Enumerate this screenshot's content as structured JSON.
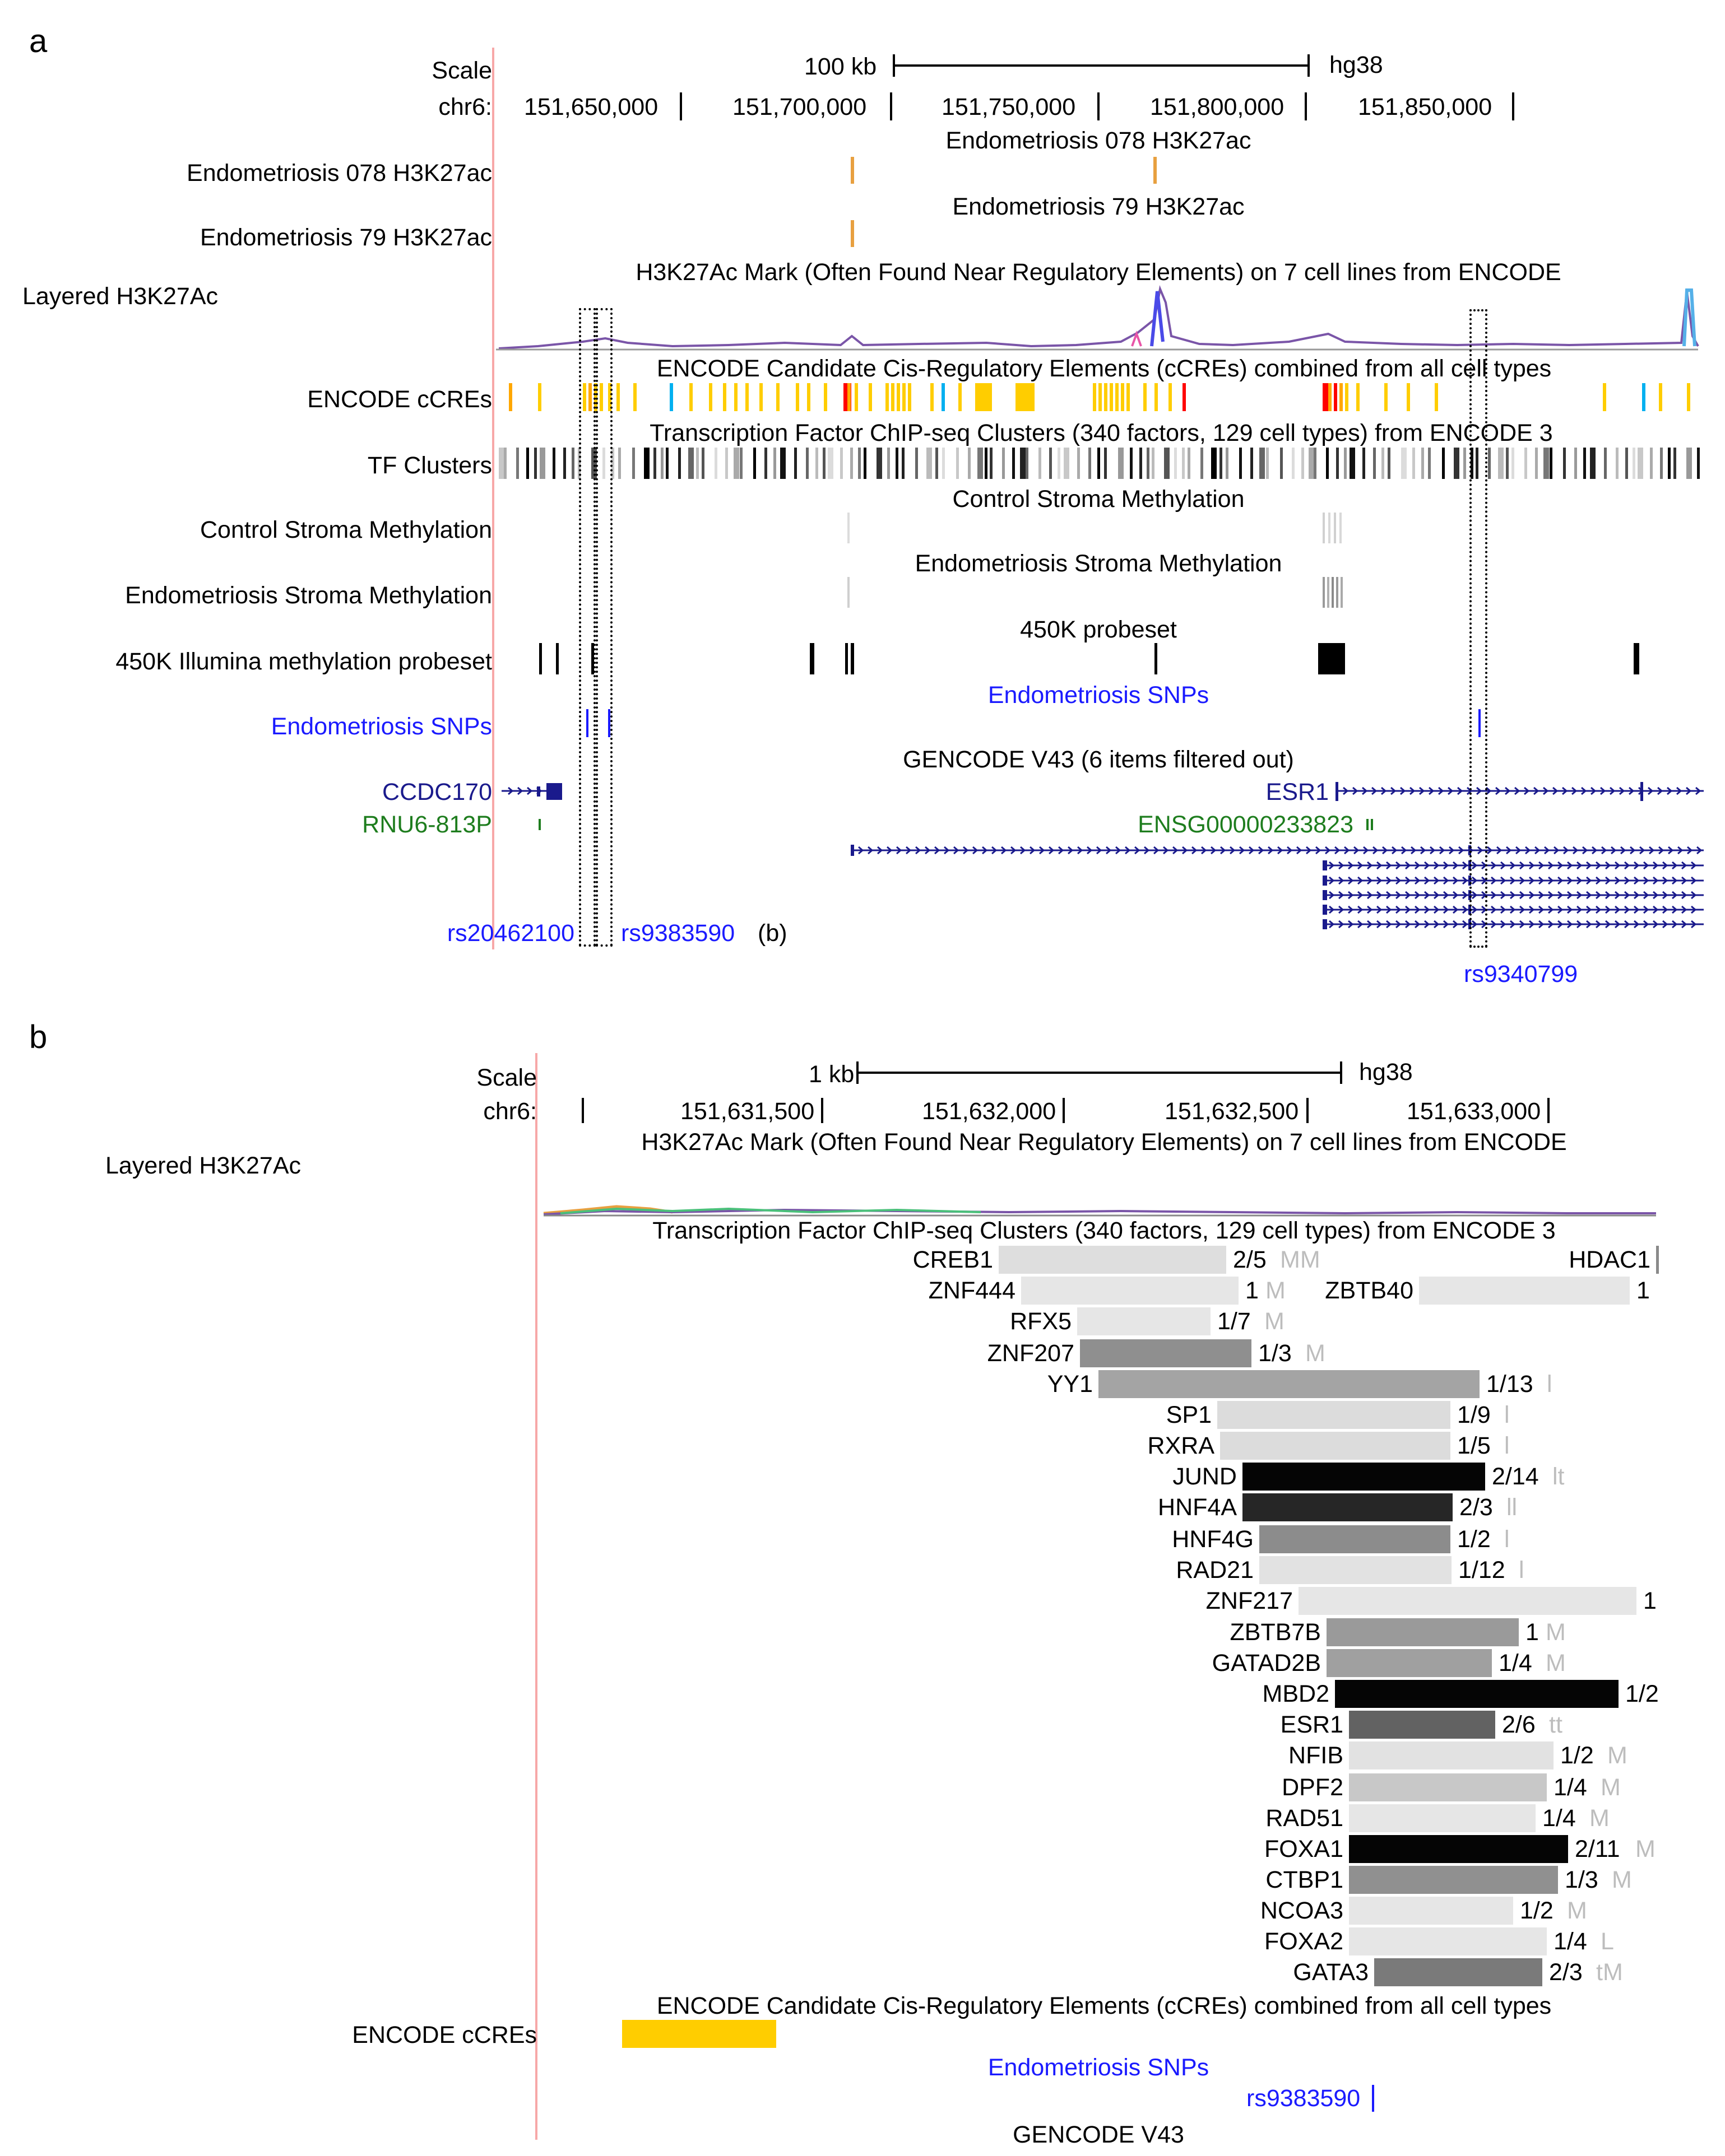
{
  "panel_a": {
    "letter": "a",
    "scale_label": "Scale",
    "scale_value": "100 kb",
    "assembly": "hg38",
    "chrom_label": "chr6:",
    "positions": [
      "151,650,000",
      "151,700,000",
      "151,750,000",
      "151,800,000",
      "151,850,000"
    ],
    "tracks": {
      "endo078": {
        "label": "Endometriosis 078 H3K27ac",
        "center": "Endometriosis 078 H3K27ac"
      },
      "endo79": {
        "label": "Endometriosis 79 H3K27ac",
        "center": "Endometriosis 79 H3K27ac"
      },
      "h3k27ac": {
        "label": "Layered H3K27Ac",
        "center": "H3K27Ac Mark (Often Found Near Regulatory Elements) on 7 cell lines from ENCODE"
      },
      "ccres": {
        "label": "ENCODE cCREs",
        "center": "ENCODE Candidate Cis-Regulatory Elements (cCREs) combined from all cell types"
      },
      "tf": {
        "label": "TF Clusters",
        "center": "Transcription Factor ChIP-seq Clusters (340 factors, 129 cell types) from ENCODE 3"
      },
      "control_meth": {
        "label": "Control Stroma Methylation",
        "center": "Control Stroma Methylation"
      },
      "endo_meth": {
        "label": "Endometriosis Stroma Methylation",
        "center": "Endometriosis Stroma Methylation"
      },
      "probeset": {
        "label": "450K Illumina methylation probeset",
        "center": "450K probeset"
      },
      "snps": {
        "label": "Endometriosis SNPs",
        "center": "Endometriosis SNPs"
      },
      "gencode": {
        "center": "GENCODE V43 (6 items filtered out)"
      }
    },
    "genes": {
      "ccdc170": "CCDC170",
      "rnu6": "RNU6-813P",
      "esr1": "ESR1",
      "ensg": "ENSG00000233823"
    },
    "snp_labels": {
      "rs1": "rs20462100",
      "rs2": "rs9383590",
      "rs2_suffix": "(b)",
      "rs3": "rs9340799"
    }
  },
  "panel_b": {
    "letter": "b",
    "scale_label": "Scale",
    "scale_value": "1 kb",
    "assembly": "hg38",
    "chrom_label": "chr6:",
    "positions": [
      "151,631,500",
      "151,632,000",
      "151,632,500",
      "151,633,000"
    ],
    "h3k27ac_label": "Layered H3K27Ac",
    "h3k27ac_center": "H3K27Ac Mark (Often Found Near Regulatory Elements) on 7 cell lines from ENCODE",
    "tf_center": "Transcription Factor ChIP-seq Clusters (340 factors, 129 cell types) from ENCODE 3",
    "tf_factors": [
      {
        "name": "CREB1",
        "score": "2/5",
        "extra": "MM",
        "shade": "#dedede"
      },
      {
        "name": "HDAC1",
        "score": "",
        "extra": "",
        "shade": "#8a8a8a"
      },
      {
        "name": "ZNF444",
        "score": "1",
        "extra": "M",
        "shade": "#e6e6e6"
      },
      {
        "name": "ZBTB40",
        "score": "1",
        "extra": "",
        "shade": "#e6e6e6"
      },
      {
        "name": "RFX5",
        "score": "1/7",
        "extra": "M",
        "shade": "#e6e6e6"
      },
      {
        "name": "ZNF207",
        "score": "1/3",
        "extra": "M",
        "shade": "#8f8f8f"
      },
      {
        "name": "YY1",
        "score": "1/13",
        "extra": "l",
        "shade": "#a4a4a4"
      },
      {
        "name": "SP1",
        "score": "1/9",
        "extra": "l",
        "shade": "#dcdcdc"
      },
      {
        "name": "RXRA",
        "score": "1/5",
        "extra": "l",
        "shade": "#dcdcdc"
      },
      {
        "name": "JUND",
        "score": "2/14",
        "extra": "lt",
        "shade": "#050505"
      },
      {
        "name": "HNF4A",
        "score": "2/3",
        "extra": "ll",
        "shade": "#262626"
      },
      {
        "name": "HNF4G",
        "score": "1/2",
        "extra": "l",
        "shade": "#8c8c8c"
      },
      {
        "name": "RAD21",
        "score": "1/12",
        "extra": "l",
        "shade": "#e2e2e2"
      },
      {
        "name": "ZNF217",
        "score": "1",
        "extra": "",
        "shade": "#e6e6e6"
      },
      {
        "name": "ZBTB7B",
        "score": "1",
        "extra": "M",
        "shade": "#9a9a9a"
      },
      {
        "name": "GATAD2B",
        "score": "1/4",
        "extra": "M",
        "shade": "#a0a0a0"
      },
      {
        "name": "MBD2",
        "score": "1/2",
        "extra": "",
        "shade": "#050505"
      },
      {
        "name": "ESR1",
        "score": "2/6",
        "extra": "tt",
        "shade": "#626262"
      },
      {
        "name": "NFIB",
        "score": "1/2",
        "extra": "M",
        "shade": "#e2e2e2"
      },
      {
        "name": "DPF2",
        "score": "1/4",
        "extra": "M",
        "shade": "#c8c8c8"
      },
      {
        "name": "RAD51",
        "score": "1/4",
        "extra": "M",
        "shade": "#e6e6e6"
      },
      {
        "name": "FOXA1",
        "score": "2/11",
        "extra": "M",
        "shade": "#050505"
      },
      {
        "name": "CTBP1",
        "score": "1/3",
        "extra": "M",
        "shade": "#909090"
      },
      {
        "name": "NCOA3",
        "score": "1/2",
        "extra": "M",
        "shade": "#e6e6e6"
      },
      {
        "name": "FOXA2",
        "score": "1/4",
        "extra": "L",
        "shade": "#e6e6e6"
      },
      {
        "name": "GATA3",
        "score": "2/3",
        "extra": "tM",
        "shade": "#7a7a7a"
      }
    ],
    "ccres_center": "ENCODE Candidate Cis-Regulatory Elements (cCREs) combined from all cell types",
    "ccres_label": "ENCODE cCREs",
    "snps_center": "Endometriosis SNPs",
    "snp_item": "rs9383590",
    "gencode_center": "GENCODE V43"
  },
  "colors": {
    "ccre_yellow": "#ffcd00",
    "ccre_red": "#ff0000",
    "ccre_orange": "#ffa700",
    "ccre_blue": "#00b0f0",
    "snp_blue": "#1a1aff",
    "gene_navy": "#1a1a8c",
    "gene_green": "#1e7d1e",
    "browser_redline": "#f7a8a8"
  }
}
